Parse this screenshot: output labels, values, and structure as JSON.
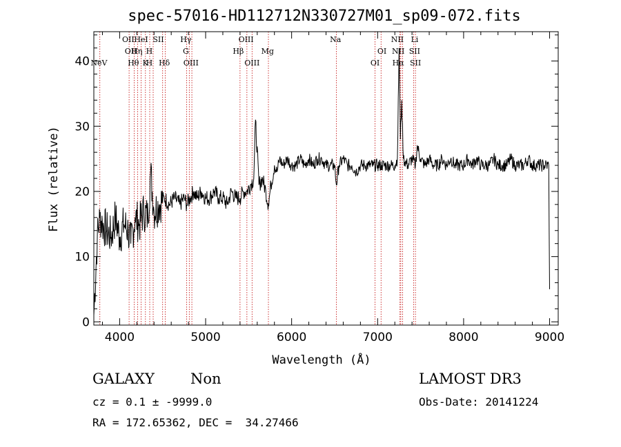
{
  "chart_data": {
    "type": "line",
    "title": "spec-57016-HD112712N330727M01_sp09-072.fits",
    "xlabel": "Wavelength (Å)",
    "ylabel": "Flux (relative)",
    "xlim": [
      3700,
      9100
    ],
    "ylim": [
      -0.5,
      44.5
    ],
    "x_ticks": [
      4000,
      5000,
      6000,
      7000,
      8000,
      9000
    ],
    "y_ticks": [
      0,
      10,
      20,
      30,
      40
    ],
    "grid": false,
    "series": [
      {
        "x": [
          3700,
          3740,
          3770,
          3800,
          3850,
          3900,
          3950,
          4000,
          4050,
          4100,
          4130,
          4180,
          4230,
          4280,
          4330,
          4360,
          4400,
          4460,
          4520,
          4580,
          4640,
          4700,
          4750,
          4780,
          4820,
          4860,
          4900,
          4950,
          5000,
          5050,
          5100,
          5150,
          5200,
          5250,
          5300,
          5350,
          5400,
          5440,
          5480,
          5520,
          5560,
          5580,
          5620,
          5660,
          5700,
          5730,
          5760,
          5800,
          5830,
          5860,
          5900,
          5950,
          6000,
          6050,
          6100,
          6150,
          6200,
          6250,
          6300,
          6350,
          6400,
          6450,
          6500,
          6520,
          6550,
          6600,
          6650,
          6700,
          6750,
          6800,
          6850,
          6900,
          6950,
          7000,
          7050,
          7100,
          7150,
          7200,
          7230,
          7250,
          7265,
          7280,
          7300,
          7350,
          7400,
          7440,
          7460,
          7500,
          7550,
          7600,
          7650,
          7700,
          7750,
          7800,
          7850,
          7900,
          7950,
          8000,
          8050,
          8100,
          8150,
          8200,
          8250,
          8300,
          8350,
          8400,
          8450,
          8500,
          8550,
          8600,
          8650,
          8700,
          8750,
          8800,
          8850,
          8900,
          8950,
          8990,
          9000
        ],
        "y": [
          1,
          13,
          16,
          15,
          14,
          13,
          16,
          13,
          15,
          14,
          12,
          16,
          15,
          17,
          16,
          23,
          17,
          18,
          19,
          18,
          19,
          18,
          19,
          18,
          19,
          20,
          19,
          20,
          19,
          19,
          20,
          19,
          19,
          18,
          20,
          19,
          19,
          20,
          20,
          21,
          22,
          31,
          21,
          22,
          20,
          18,
          21,
          24,
          23,
          25,
          24,
          25,
          24,
          24,
          25,
          24,
          25,
          24,
          25,
          25,
          24,
          24,
          24,
          21,
          24,
          25,
          24,
          24,
          23,
          24,
          24,
          24,
          24,
          24,
          24,
          24,
          24,
          24,
          25,
          42,
          28,
          34,
          25,
          24,
          25,
          24,
          27,
          25,
          24,
          25,
          24,
          24,
          25,
          24,
          25,
          24,
          24,
          24,
          25,
          24,
          25,
          24,
          24,
          24,
          25,
          24,
          24,
          24,
          25,
          24,
          24,
          24,
          25,
          24,
          24,
          24,
          24,
          24,
          5
        ]
      }
    ],
    "emission_lines": [
      {
        "label": "NeV",
        "wl": 3760,
        "row": 4
      },
      {
        "label": "OII",
        "wl": 4100,
        "row": 1
      },
      {
        "label": "OII",
        "wl": 4130,
        "row": 2
      },
      {
        "label": "Hθ",
        "wl": 4160,
        "row": 3
      },
      {
        "label": "Hη",
        "wl": 4200,
        "row": 2
      },
      {
        "label": "HeI",
        "wl": 4250,
        "row": 1
      },
      {
        "label": "K",
        "wl": 4300,
        "row": 3
      },
      {
        "label": "H",
        "wl": 4345,
        "row": 2
      },
      {
        "label": "H",
        "wl": 4345,
        "row": 3
      },
      {
        "label": "SII",
        "wl": 4450,
        "row": 1
      },
      {
        "label": "Hδ",
        "wl": 4520,
        "row": 3
      },
      {
        "label": "Hγ",
        "wl": 4770,
        "row": 1
      },
      {
        "label": "G",
        "wl": 4770,
        "row": 2
      },
      {
        "label": "OIII",
        "wl": 4830,
        "row": 3
      },
      {
        "label": "Hβ",
        "wl": 5380,
        "row": 2
      },
      {
        "label": "OIII",
        "wl": 5470,
        "row": 1
      },
      {
        "label": "OIII",
        "wl": 5540,
        "row": 3
      },
      {
        "label": "Mg",
        "wl": 5720,
        "row": 2
      },
      {
        "label": "Na",
        "wl": 6510,
        "row": 1
      },
      {
        "label": "OI",
        "wl": 7050,
        "row": 2
      },
      {
        "label": "OI",
        "wl": 6970,
        "row": 3
      },
      {
        "label": "NII",
        "wl": 7230,
        "row": 1
      },
      {
        "label": "NII",
        "wl": 7240,
        "row": 2
      },
      {
        "label": "Hα",
        "wl": 7240,
        "row": 3
      },
      {
        "label": "Li",
        "wl": 7430,
        "row": 1
      },
      {
        "label": "SII",
        "wl": 7430,
        "row": 2
      },
      {
        "label": "SII",
        "wl": 7440,
        "row": 3
      }
    ],
    "line_positions": [
      3770,
      4110,
      4170,
      4210,
      4250,
      4300,
      4350,
      4390,
      4500,
      4530,
      4780,
      4810,
      4840,
      5400,
      5480,
      5540,
      5730,
      6520,
      6970,
      7040,
      7260,
      7270,
      7290,
      7420,
      7440
    ],
    "colors": {
      "spectrum": "#000000",
      "line_marks": "#c00000",
      "axes": "#000000"
    }
  },
  "info": {
    "class": "GALAXY",
    "subclass": "Non",
    "survey": "LAMOST DR3",
    "cz": "cz = 0.1 ± -9999.0",
    "obs_date": "Obs-Date: 20141224",
    "radec": "RA = 172.65362, DEC =  34.27466"
  }
}
